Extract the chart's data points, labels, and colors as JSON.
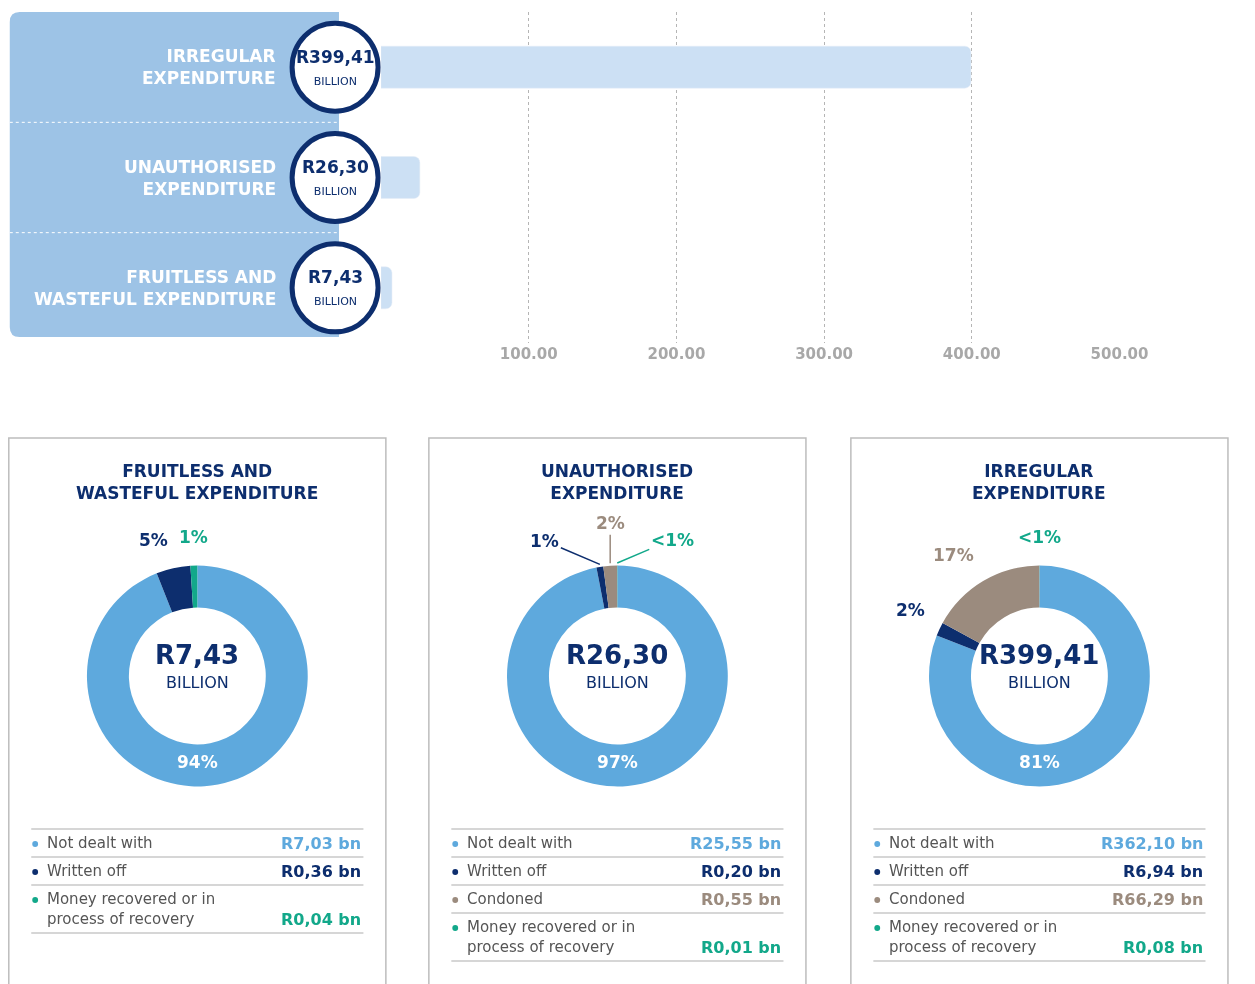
{
  "chart_data": [
    {
      "type": "bar",
      "orientation": "horizontal",
      "categories": [
        "IRREGULAR\nEXPENDITURE",
        "UNAUTHORISED\nEXPENDITURE",
        "FRUITLESS AND\nWASTEFUL EXPENDITURE"
      ],
      "values": [
        399.41,
        26.3,
        7.43
      ],
      "color": "#cce0f4",
      "value_labels": [
        "R399,41\nBILLION",
        "R26,30\nBILLION",
        "R7,43\nBILLION"
      ],
      "xlim": [
        0,
        500
      ],
      "xticks": [
        {
          "value": 100,
          "label": "100.00"
        },
        {
          "value": 200,
          "label": "200.00"
        },
        {
          "value": 300,
          "label": "300.00"
        },
        {
          "value": 400,
          "label": "400.00"
        },
        {
          "value": 500,
          "label": "500.00"
        }
      ],
      "grid": "x",
      "legend": false
    },
    {
      "type": "donut",
      "title": "FRUITLESS AND\nWASTEFUL EXPENDITURE",
      "categories": [
        "Not dealt with",
        "Written off",
        "Money recovered or in\nprocess of recovery"
      ],
      "values": [
        94,
        5,
        1
      ],
      "colors": [
        "#5ea9dd",
        "#0d2e6e",
        "#12a88a"
      ],
      "value_labels": [
        "94%",
        "5%",
        "1%"
      ],
      "annotations": [
        "R7,43",
        "BILLION",
        "R7,03 bn",
        "R0,36 bn",
        "R0,04 bn"
      ],
      "legend": "bottom"
    },
    {
      "type": "donut",
      "title": "UNAUTHORISED\nEXPENDITURE",
      "categories": [
        "Not dealt with",
        "Written off",
        "Condoned",
        "Money recovered or in\nprocess of recovery"
      ],
      "values": [
        97,
        1,
        2,
        0.04
      ],
      "colors": [
        "#5ea9dd",
        "#0d2e6e",
        "#9b8b7e",
        "#12a88a"
      ],
      "value_labels": [
        "97%",
        "1%",
        "2%",
        "<1%"
      ],
      "annotations": [
        "R26,30",
        "BILLION",
        "R25,55 bn",
        "R0,20 bn",
        "R0,55 bn",
        "R0,01 bn"
      ],
      "legend": "bottom"
    },
    {
      "type": "donut",
      "title": "IRREGULAR\nEXPENDITURE",
      "categories": [
        "Not dealt with",
        "Written off",
        "Condoned",
        "Money recovered or in\nprocess of recovery"
      ],
      "values": [
        81,
        2,
        17,
        0.02
      ],
      "colors": [
        "#5ea9dd",
        "#0d2e6e",
        "#9b8b7e",
        "#12a88a"
      ],
      "value_labels": [
        "81%",
        "2%",
        "17%",
        "<1%"
      ],
      "annotations": [
        "R399,41",
        "BILLION",
        "R362,10 bn",
        "R6,94 bn",
        "R66,29 bn",
        "R0,08 bn"
      ],
      "legend": "bottom"
    }
  ]
}
